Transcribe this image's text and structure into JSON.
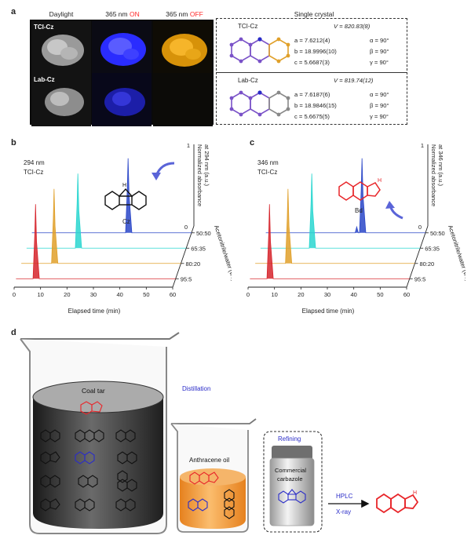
{
  "panels": {
    "a": "a",
    "b": "b",
    "c": "c",
    "d": "d"
  },
  "panel_a": {
    "headers": {
      "daylight": "Daylight",
      "on_prefix": "365 nm ",
      "on_word": "ON",
      "off_prefix": "365 nm ",
      "off_word": "OFF",
      "crystal": "Single crystal"
    },
    "rows": {
      "tci": "TCI-Cz",
      "lab": "Lab-Cz"
    },
    "tci_cell": {
      "name": "TCI-Cz",
      "V": "V = 820.83(8)",
      "a": "a = 7.6212(4)",
      "b": "b = 18.9996(10)",
      "c": "c = 5.6687(3)",
      "alpha": "α = 90°",
      "beta": "β = 90°",
      "gamma": "γ = 90°"
    },
    "lab_cell": {
      "name": "Lab-Cz",
      "V": "V = 819.74(12)",
      "a": "a = 7.6187(6)",
      "b": "b = 18.9846(15)",
      "c": "c = 5.6675(5)",
      "alpha": "α = 90°",
      "beta": "β = 90°",
      "gamma": "γ = 90°"
    },
    "colors": {
      "on": "#ff2a2a",
      "off": "#ff2a2a",
      "blue_glow": "#2a2cff",
      "orange_glow": "#f2a612"
    }
  },
  "panel_b": {
    "wavelength": "294 nm",
    "sample": "TCI-Cz",
    "molecule": "Cz",
    "xlabel": "Elapsed time (min)",
    "xticks": [
      "0",
      "10",
      "20",
      "30",
      "40",
      "50",
      "60"
    ],
    "zlabel": "Acetonitrile/water (v/v)",
    "ylabel1": "Normalized absorbance",
    "ylabel2": "at 294 nm (a.u.)",
    "y0": "0",
    "y1": "1",
    "ratios": [
      "50:50",
      "65:35",
      "80:20",
      "95:5"
    ]
  },
  "panel_c": {
    "wavelength": "346 nm",
    "sample": "TCI-Cz",
    "molecule": "Bd",
    "xlabel": "Elapsed time (min)",
    "xticks": [
      "0",
      "10",
      "20",
      "30",
      "40",
      "50",
      "60"
    ],
    "zlabel": "Acetonitrile/water (v/v)",
    "ylabel1": "Normalized absorbance",
    "ylabel2": "at 346 nm (a.u.)",
    "y0": "0",
    "y1": "1",
    "ratios": [
      "50:50",
      "65:35",
      "80:20",
      "95:5"
    ]
  },
  "chart_data": [
    {
      "type": "line",
      "panel": "b",
      "x_range": [
        0,
        60
      ],
      "series": [
        {
          "name": "95:5",
          "color": "#d6242c",
          "peak_time": 7,
          "peak_height": 1.0
        },
        {
          "name": "80:20",
          "color": "#e0a02a",
          "peak_time": 12,
          "peak_height": 1.0
        },
        {
          "name": "65:35",
          "color": "#2ad6d0",
          "peak_time": 19,
          "peak_height": 1.0
        },
        {
          "name": "50:50",
          "color": "#2a46c8",
          "peak_time": 36,
          "peak_height": 1.0
        }
      ]
    },
    {
      "type": "line",
      "panel": "c",
      "x_range": [
        0,
        60
      ],
      "series": [
        {
          "name": "95:5",
          "color": "#d6242c",
          "peak_time": 7,
          "peak_height": 1.0
        },
        {
          "name": "80:20",
          "color": "#e0a02a",
          "peak_time": 12,
          "peak_height": 1.0
        },
        {
          "name": "65:35",
          "color": "#2ad6d0",
          "peak_time": 19,
          "peak_height": 1.0
        },
        {
          "name": "50:50",
          "color": "#2a46c8",
          "peak_time": 36,
          "peak_height": 1.0,
          "side_peak_time": 34,
          "side_peak_height": 0.08
        }
      ]
    }
  ],
  "panel_d": {
    "coal_tar": "Coal tar",
    "distillation": "Distillation",
    "anthracene_oil": "Anthracene oil",
    "refining": "Refining",
    "commercial1": "Commercial",
    "commercial2": "carbazole",
    "hplc": "HPLC",
    "xray": "X-ray"
  }
}
